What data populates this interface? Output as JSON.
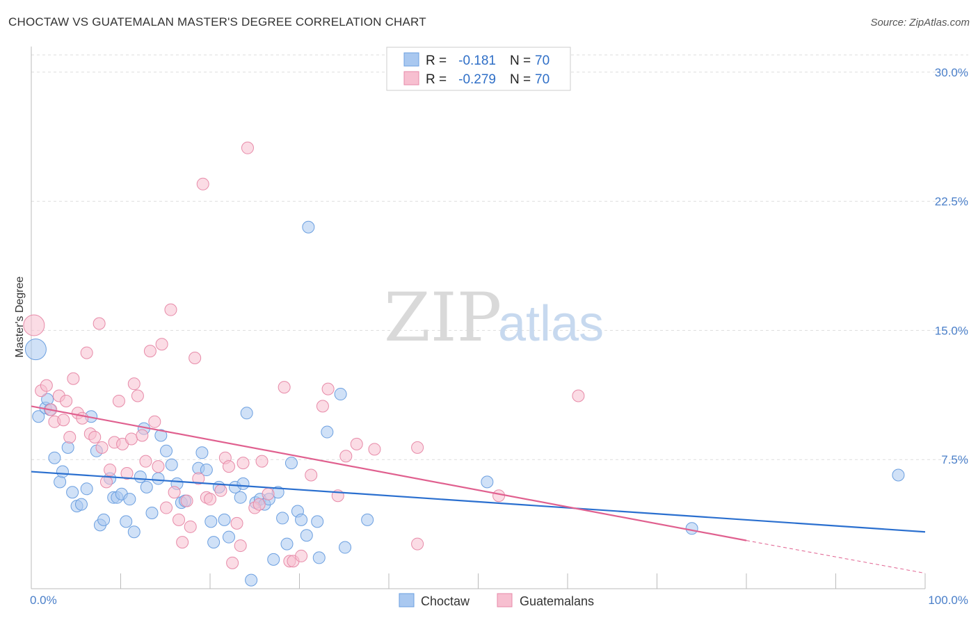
{
  "title": "CHOCTAW VS GUATEMALAN MASTER'S DEGREE CORRELATION CHART",
  "source": "Source: ZipAtlas.com",
  "watermark": {
    "zip": "ZIP",
    "atlas": "atlas"
  },
  "colors": {
    "blue_fill": "#a9c8f0",
    "blue_stroke": "#6b9fe0",
    "blue_line": "#2a6fcf",
    "pink_fill": "#f7bfd0",
    "pink_stroke": "#e78aa8",
    "pink_line": "#e0608f",
    "axis_label": "#4a7fc9",
    "grid": "#dddddd"
  },
  "legend": {
    "rows": [
      {
        "r_label": "R =",
        "r_value": "-0.181",
        "n_label": "N =",
        "n_value": "70"
      },
      {
        "r_label": "R =",
        "r_value": "-0.279",
        "n_label": "N =",
        "n_value": "70"
      }
    ]
  },
  "chart_data": {
    "type": "scatter",
    "title": "CHOCTAW VS GUATEMALAN MASTER'S DEGREE CORRELATION CHART",
    "xlabel": "",
    "ylabel": "Master's Degree",
    "xlim": [
      0,
      100
    ],
    "ylim": [
      0,
      31
    ],
    "x_tick_labels": [
      "0.0%",
      "100.0%"
    ],
    "y_ticks": [
      7.5,
      15.0,
      22.5,
      30.0
    ],
    "y_tick_labels": [
      "7.5%",
      "15.0%",
      "22.5%",
      "30.0%"
    ],
    "series": [
      {
        "name": "Choctaw",
        "color": "#a9c8f0",
        "trend": {
          "x": [
            0,
            100
          ],
          "y": [
            6.8,
            3.3
          ]
        },
        "points": [
          [
            0.8,
            10.0
          ],
          [
            1.6,
            10.5
          ],
          [
            1.8,
            11.0
          ],
          [
            2.1,
            10.4
          ],
          [
            2.6,
            7.6
          ],
          [
            3.2,
            6.2
          ],
          [
            3.5,
            6.8
          ],
          [
            4.1,
            8.2
          ],
          [
            4.6,
            5.6
          ],
          [
            5.1,
            4.8
          ],
          [
            5.6,
            4.9
          ],
          [
            6.2,
            5.8
          ],
          [
            6.7,
            10.0
          ],
          [
            7.3,
            8.0
          ],
          [
            7.7,
            3.7
          ],
          [
            8.1,
            4.0
          ],
          [
            8.8,
            6.4
          ],
          [
            9.2,
            5.3
          ],
          [
            9.6,
            5.3
          ],
          [
            10.1,
            5.5
          ],
          [
            10.6,
            3.9
          ],
          [
            11.0,
            5.2
          ],
          [
            11.5,
            3.3
          ],
          [
            12.2,
            6.5
          ],
          [
            12.6,
            9.3
          ],
          [
            12.9,
            5.9
          ],
          [
            13.5,
            4.4
          ],
          [
            14.2,
            6.4
          ],
          [
            14.5,
            8.9
          ],
          [
            15.1,
            8.0
          ],
          [
            15.7,
            7.2
          ],
          [
            16.3,
            6.1
          ],
          [
            16.8,
            5.0
          ],
          [
            17.2,
            5.1
          ],
          [
            18.7,
            7.0
          ],
          [
            19.1,
            7.9
          ],
          [
            19.6,
            6.9
          ],
          [
            20.1,
            3.9
          ],
          [
            20.4,
            2.7
          ],
          [
            21.0,
            5.9
          ],
          [
            21.6,
            4.0
          ],
          [
            22.1,
            3.0
          ],
          [
            22.8,
            5.9
          ],
          [
            23.4,
            5.3
          ],
          [
            23.7,
            6.1
          ],
          [
            24.1,
            10.2
          ],
          [
            24.6,
            0.5
          ],
          [
            25.1,
            5.0
          ],
          [
            25.6,
            5.2
          ],
          [
            26.1,
            4.9
          ],
          [
            26.6,
            5.2
          ],
          [
            27.1,
            1.7
          ],
          [
            27.6,
            5.6
          ],
          [
            28.1,
            4.1
          ],
          [
            28.6,
            2.6
          ],
          [
            29.1,
            7.3
          ],
          [
            29.8,
            4.5
          ],
          [
            30.2,
            4.0
          ],
          [
            30.8,
            3.1
          ],
          [
            31.0,
            21.0
          ],
          [
            32.0,
            3.9
          ],
          [
            32.2,
            1.8
          ],
          [
            33.1,
            9.1
          ],
          [
            34.6,
            11.3
          ],
          [
            35.1,
            2.4
          ],
          [
            37.6,
            4.0
          ],
          [
            51.0,
            6.2
          ],
          [
            73.9,
            3.5
          ],
          [
            97.0,
            6.6
          ],
          [
            0.5,
            13.9
          ]
        ],
        "point_sizes": [
          "n",
          "n",
          "n",
          "n",
          "n",
          "n",
          "n",
          "n",
          "n",
          "n",
          "n",
          "n",
          "n",
          "n",
          "n",
          "n",
          "n",
          "n",
          "n",
          "n",
          "n",
          "n",
          "n",
          "n",
          "n",
          "n",
          "n",
          "n",
          "n",
          "n",
          "n",
          "n",
          "n",
          "n",
          "n",
          "n",
          "n",
          "n",
          "n",
          "n",
          "n",
          "n",
          "n",
          "n",
          "n",
          "n",
          "n",
          "n",
          "n",
          "n",
          "n",
          "n",
          "n",
          "n",
          "n",
          "n",
          "n",
          "n",
          "n",
          "n",
          "n",
          "n",
          "n",
          "n",
          "n",
          "n",
          "n",
          "n",
          "n",
          "xl"
        ]
      },
      {
        "name": "Guatemalans",
        "color": "#f7bfd0",
        "trend": {
          "x": [
            0,
            80
          ],
          "y": [
            10.6,
            2.8
          ]
        },
        "trend_dashed": {
          "x": [
            80,
            100
          ],
          "y": [
            2.8,
            0.9
          ]
        },
        "points": [
          [
            1.1,
            11.5
          ],
          [
            1.7,
            11.8
          ],
          [
            2.2,
            10.4
          ],
          [
            2.6,
            9.7
          ],
          [
            3.1,
            11.2
          ],
          [
            3.6,
            9.8
          ],
          [
            3.9,
            10.9
          ],
          [
            4.3,
            8.8
          ],
          [
            4.7,
            12.2
          ],
          [
            5.2,
            10.2
          ],
          [
            5.7,
            9.9
          ],
          [
            6.2,
            13.7
          ],
          [
            6.6,
            9.0
          ],
          [
            7.1,
            8.8
          ],
          [
            7.6,
            15.4
          ],
          [
            7.9,
            8.2
          ],
          [
            8.4,
            6.2
          ],
          [
            8.8,
            6.9
          ],
          [
            9.3,
            8.5
          ],
          [
            9.8,
            10.9
          ],
          [
            10.2,
            8.4
          ],
          [
            10.7,
            6.7
          ],
          [
            11.2,
            8.7
          ],
          [
            11.5,
            11.9
          ],
          [
            11.9,
            11.2
          ],
          [
            12.4,
            8.9
          ],
          [
            12.8,
            7.4
          ],
          [
            13.3,
            13.8
          ],
          [
            13.8,
            9.7
          ],
          [
            14.2,
            7.1
          ],
          [
            14.6,
            14.2
          ],
          [
            15.1,
            4.7
          ],
          [
            15.6,
            16.2
          ],
          [
            16.0,
            5.6
          ],
          [
            16.5,
            4.0
          ],
          [
            16.9,
            2.7
          ],
          [
            17.4,
            5.1
          ],
          [
            17.8,
            3.6
          ],
          [
            18.3,
            13.4
          ],
          [
            18.7,
            6.4
          ],
          [
            19.2,
            23.5
          ],
          [
            19.6,
            5.3
          ],
          [
            20.0,
            5.2
          ],
          [
            21.2,
            5.7
          ],
          [
            21.7,
            7.6
          ],
          [
            22.1,
            7.1
          ],
          [
            22.5,
            1.5
          ],
          [
            23.0,
            3.8
          ],
          [
            23.4,
            2.5
          ],
          [
            23.7,
            7.3
          ],
          [
            24.2,
            25.6
          ],
          [
            25.0,
            4.7
          ],
          [
            25.5,
            4.9
          ],
          [
            25.8,
            7.4
          ],
          [
            26.5,
            5.5
          ],
          [
            28.3,
            11.7
          ],
          [
            28.9,
            1.6
          ],
          [
            29.3,
            1.6
          ],
          [
            30.2,
            1.9
          ],
          [
            31.3,
            6.6
          ],
          [
            32.6,
            10.6
          ],
          [
            33.2,
            11.6
          ],
          [
            34.3,
            5.4
          ],
          [
            35.2,
            7.7
          ],
          [
            36.4,
            8.4
          ],
          [
            38.4,
            8.1
          ],
          [
            43.2,
            8.2
          ],
          [
            43.2,
            2.6
          ],
          [
            52.3,
            5.4
          ],
          [
            61.2,
            11.2
          ]
        ],
        "point_sizes": [
          "n",
          "n",
          "n",
          "n",
          "n",
          "n",
          "n",
          "n",
          "n",
          "n",
          "n",
          "n",
          "n",
          "n",
          "n",
          "n",
          "n",
          "n",
          "n",
          "n",
          "n",
          "n",
          "n",
          "n",
          "n",
          "n",
          "n",
          "n",
          "n",
          "n",
          "n",
          "n",
          "n",
          "n",
          "n",
          "n",
          "n",
          "n",
          "n",
          "n",
          "n",
          "n",
          "n",
          "n",
          "n",
          "n",
          "n",
          "n",
          "n",
          "n",
          "n",
          "n",
          "n",
          "n",
          "n",
          "n",
          "n",
          "n",
          "n",
          "n",
          "n",
          "n",
          "n",
          "n",
          "n",
          "n",
          "n",
          "n",
          "n",
          "n"
        ],
        "extra_points": [
          [
            0.3,
            15.3
          ]
        ]
      }
    ],
    "legend": [
      "Choctaw",
      "Guatemalans"
    ],
    "legend_placement": "bottom-center",
    "grid": true
  }
}
